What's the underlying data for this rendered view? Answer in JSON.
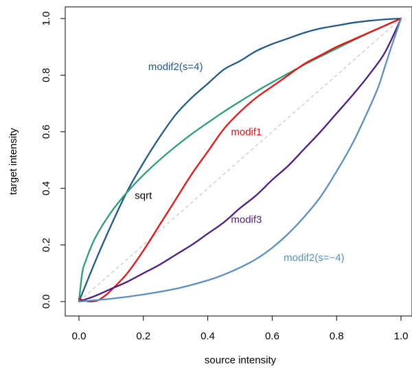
{
  "chart_data": {
    "type": "line",
    "title": "",
    "xlabel": "source intensity",
    "ylabel": "target intensity",
    "xlim": [
      0,
      1
    ],
    "ylim": [
      0,
      1
    ],
    "xticks": [
      "0.0",
      "0.2",
      "0.4",
      "0.6",
      "0.8",
      "1.0"
    ],
    "yticks": [
      "0.0",
      "0.2",
      "0.4",
      "0.6",
      "0.8",
      "1.0"
    ],
    "grid": false,
    "reference_line": {
      "style": "dashed",
      "color": "#bbbbbb",
      "x": [
        0,
        1
      ],
      "y": [
        0,
        1
      ]
    },
    "series": [
      {
        "name": "modif2(s=4)",
        "color": "#1f5a8a",
        "x": [
          0,
          0.05,
          0.1,
          0.15,
          0.2,
          0.25,
          0.3,
          0.35,
          0.4,
          0.45,
          0.5,
          0.55,
          0.6,
          0.65,
          0.7,
          0.75,
          0.8,
          0.85,
          0.9,
          0.95,
          1.0
        ],
        "y": [
          0.0,
          0.14,
          0.27,
          0.39,
          0.49,
          0.58,
          0.66,
          0.72,
          0.77,
          0.82,
          0.85,
          0.885,
          0.91,
          0.93,
          0.95,
          0.965,
          0.975,
          0.985,
          0.992,
          0.997,
          1.0
        ]
      },
      {
        "name": "sqrt",
        "color": "#2e9e78",
        "x": [
          0,
          0.01,
          0.02,
          0.05,
          0.1,
          0.15,
          0.2,
          0.25,
          0.3,
          0.35,
          0.4,
          0.45,
          0.5,
          0.55,
          0.6,
          0.65,
          0.7,
          0.75,
          0.8,
          0.85,
          0.9,
          0.95,
          1.0
        ],
        "y": [
          0.0,
          0.1,
          0.141,
          0.224,
          0.316,
          0.387,
          0.447,
          0.5,
          0.548,
          0.592,
          0.632,
          0.671,
          0.707,
          0.742,
          0.775,
          0.806,
          0.837,
          0.866,
          0.894,
          0.922,
          0.949,
          0.975,
          1.0
        ]
      },
      {
        "name": "modif1",
        "color": "#ee1111",
        "x": [
          0,
          0.02,
          0.04,
          0.06,
          0.08,
          0.1,
          0.15,
          0.2,
          0.25,
          0.3,
          0.35,
          0.4,
          0.45,
          0.5,
          0.55,
          0.6,
          0.65,
          0.7,
          0.75,
          0.8,
          0.85,
          0.9,
          0.95,
          1.0
        ],
        "y": [
          0.01,
          0.002,
          0.0,
          0.005,
          0.02,
          0.04,
          0.1,
          0.18,
          0.27,
          0.36,
          0.45,
          0.53,
          0.61,
          0.67,
          0.72,
          0.76,
          0.8,
          0.84,
          0.87,
          0.9,
          0.925,
          0.95,
          0.975,
          1.0
        ]
      },
      {
        "name": "modif3",
        "color": "#4b1c86",
        "x": [
          0,
          0.05,
          0.1,
          0.15,
          0.2,
          0.25,
          0.3,
          0.35,
          0.4,
          0.45,
          0.5,
          0.55,
          0.6,
          0.65,
          0.7,
          0.75,
          0.8,
          0.85,
          0.9,
          0.95,
          1.0
        ],
        "y": [
          0.0,
          0.02,
          0.045,
          0.07,
          0.1,
          0.13,
          0.165,
          0.2,
          0.24,
          0.28,
          0.33,
          0.375,
          0.43,
          0.48,
          0.54,
          0.6,
          0.665,
          0.73,
          0.8,
          0.88,
          1.0
        ]
      },
      {
        "name": "modif2(s=−4)",
        "color": "#5b8fc0",
        "x": [
          0,
          0.1,
          0.2,
          0.3,
          0.4,
          0.45,
          0.5,
          0.55,
          0.6,
          0.65,
          0.7,
          0.75,
          0.8,
          0.85,
          0.9,
          0.93,
          0.95,
          0.97,
          1.0
        ],
        "y": [
          0.0,
          0.01,
          0.025,
          0.045,
          0.075,
          0.095,
          0.12,
          0.15,
          0.19,
          0.24,
          0.3,
          0.37,
          0.46,
          0.56,
          0.68,
          0.76,
          0.83,
          0.9,
          1.0
        ]
      }
    ],
    "annotations": [
      {
        "text": "modif2(s=4)",
        "x": 0.3,
        "y": 0.83,
        "color": "#1f5a8a"
      },
      {
        "text": "modif1",
        "x": 0.52,
        "y": 0.6,
        "color": "#ee1111"
      },
      {
        "text": "sqrt",
        "x": 0.2,
        "y": 0.375,
        "color": "#000000"
      },
      {
        "text": "modif3",
        "x": 0.52,
        "y": 0.29,
        "color": "#4b1c86"
      },
      {
        "text": "modif2(s=−4)",
        "x": 0.73,
        "y": 0.155,
        "color": "#5b8fc0"
      }
    ]
  }
}
